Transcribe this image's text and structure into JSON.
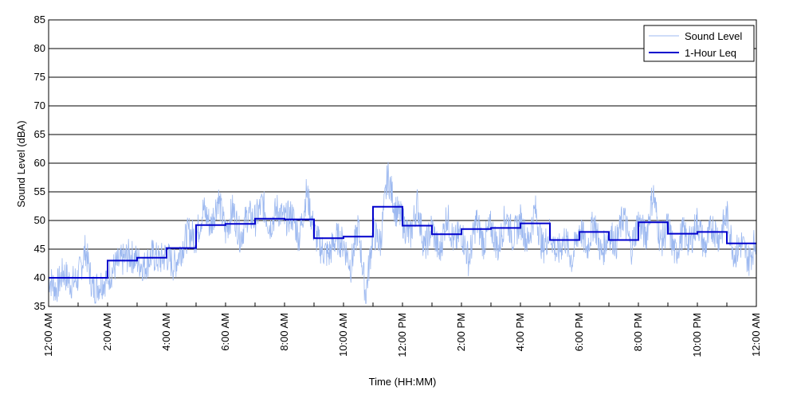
{
  "chart_data": {
    "type": "line",
    "title": "",
    "xlabel": "Time (HH:MM)",
    "ylabel": "Sound Level (dBA)",
    "ylim": [
      35,
      85
    ],
    "yticks": [
      35,
      40,
      45,
      50,
      55,
      60,
      65,
      70,
      75,
      80,
      85
    ],
    "xlim_hours": [
      0,
      24
    ],
    "xtick_labels": [
      "12:00 AM",
      "2:00 AM",
      "4:00 AM",
      "6:00 AM",
      "8:00 AM",
      "10:00 AM",
      "12:00 PM",
      "2:00 PM",
      "4:00 PM",
      "6:00 PM",
      "8:00 PM",
      "10:00 PM",
      "12:00 AM"
    ],
    "grid": "horizontal",
    "legend_position": "top-right",
    "colors": {
      "sound_level": "#9db9f0",
      "leq": "#0000cc"
    },
    "series": [
      {
        "name": "Sound Level",
        "style": "thin light line",
        "x_hours": [
          0,
          0.25,
          0.5,
          0.75,
          1,
          1.25,
          1.5,
          1.75,
          2,
          2.25,
          2.5,
          2.75,
          3,
          3.25,
          3.5,
          3.75,
          4,
          4.25,
          4.5,
          4.75,
          5,
          5.25,
          5.5,
          5.75,
          6,
          6.25,
          6.5,
          6.75,
          7,
          7.25,
          7.5,
          7.75,
          8,
          8.25,
          8.5,
          8.75,
          9,
          9.25,
          9.5,
          9.75,
          10,
          10.25,
          10.5,
          10.75,
          11,
          11.25,
          11.5,
          11.75,
          12,
          12.25,
          12.5,
          12.75,
          13,
          13.25,
          13.5,
          13.75,
          14,
          14.25,
          14.5,
          14.75,
          15,
          15.25,
          15.5,
          15.75,
          16,
          16.25,
          16.5,
          16.75,
          17,
          17.25,
          17.5,
          17.75,
          18,
          18.25,
          18.5,
          18.75,
          19,
          19.25,
          19.5,
          19.75,
          20,
          20.25,
          20.5,
          20.75,
          21,
          21.25,
          21.5,
          21.75,
          22,
          22.25,
          22.5,
          22.75,
          23,
          23.25,
          23.5,
          23.75,
          24
        ],
        "y": [
          40,
          38,
          41,
          39,
          40,
          45,
          38,
          39,
          40,
          42,
          43,
          44,
          43,
          42,
          44,
          43,
          44,
          42,
          45,
          48,
          47,
          52,
          49,
          54,
          48,
          52,
          47,
          51,
          50,
          53,
          49,
          52,
          50,
          51,
          47,
          55,
          48,
          45,
          44,
          47,
          46,
          42,
          49,
          37,
          48,
          46,
          58,
          52,
          50,
          47,
          53,
          45,
          49,
          44,
          51,
          46,
          48,
          43,
          50,
          46,
          49,
          45,
          51,
          47,
          50,
          46,
          52,
          45,
          48,
          44,
          47,
          43,
          49,
          45,
          50,
          44,
          48,
          46,
          51,
          45,
          50,
          47,
          55,
          46,
          49,
          44,
          48,
          46,
          50,
          45,
          49,
          47,
          51,
          44,
          46,
          43,
          47
        ]
      },
      {
        "name": "1-Hour Leq",
        "style": "thick dark step line",
        "hourly_values": [
          40,
          40,
          43,
          43.5,
          45.2,
          49.2,
          49.4,
          50.3,
          50.2,
          46.9,
          47.2,
          52.4,
          49.1,
          47.6,
          48.5,
          48.7,
          49.5,
          46.6,
          48,
          46.6,
          49.7,
          47.7,
          48,
          46
        ]
      }
    ]
  }
}
